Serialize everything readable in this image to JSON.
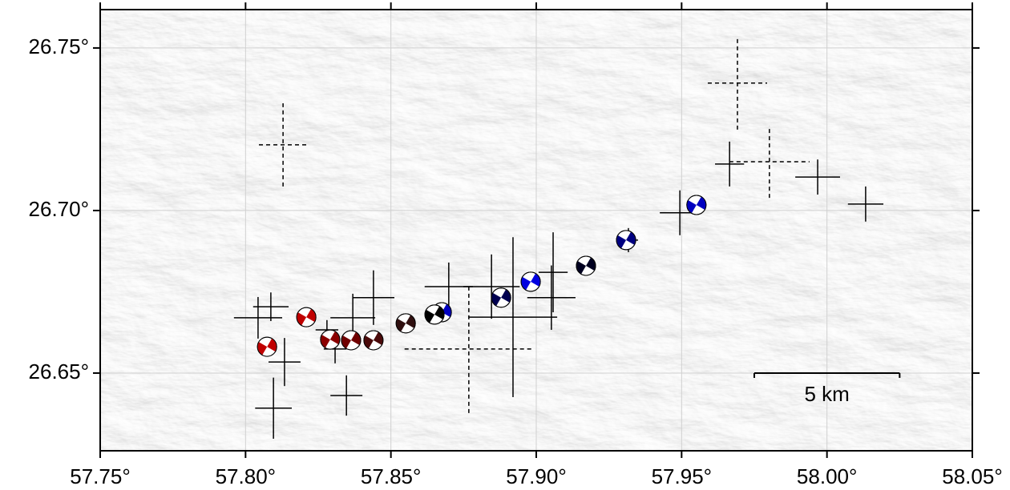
{
  "chart_data": {
    "type": "map",
    "xlim": [
      57.75,
      58.05
    ],
    "ylim": [
      26.6261,
      26.7618
    ],
    "xticks": [
      {
        "value": 57.75,
        "label": "57.75°"
      },
      {
        "value": 57.8,
        "label": "57.80°"
      },
      {
        "value": 57.85,
        "label": "57.85°"
      },
      {
        "value": 57.9,
        "label": "57.90°"
      },
      {
        "value": 57.95,
        "label": "57.95°"
      },
      {
        "value": 58.0,
        "label": "58.00°"
      },
      {
        "value": 58.05,
        "label": "58.05°"
      }
    ],
    "yticks": [
      {
        "value": 26.65,
        "label": "26.65°"
      },
      {
        "value": 26.7,
        "label": "26.70°"
      },
      {
        "value": 26.75,
        "label": "26.75°"
      }
    ],
    "grid": true,
    "crosses": [
      {
        "lon": 57.8043,
        "lat": 26.667,
        "dlon": 0.0083,
        "dlat": 0.0064,
        "style": "solid"
      },
      {
        "lon": 57.8087,
        "lat": 26.6704,
        "dlon": 0.0061,
        "dlat": 0.0044,
        "style": "solid"
      },
      {
        "lon": 57.8134,
        "lat": 26.6534,
        "dlon": 0.0055,
        "dlat": 0.0074,
        "style": "solid"
      },
      {
        "lon": 57.8096,
        "lat": 26.6392,
        "dlon": 0.0063,
        "dlat": 0.0094,
        "style": "solid"
      },
      {
        "lon": 57.828,
        "lat": 26.6633,
        "dlon": 0.0039,
        "dlat": 0.003,
        "style": "solid"
      },
      {
        "lon": 57.8308,
        "lat": 26.6574,
        "dlon": 0.0039,
        "dlat": 0.0044,
        "style": "solid"
      },
      {
        "lon": 57.844,
        "lat": 26.6732,
        "dlon": 0.0072,
        "dlat": 0.0084,
        "style": "solid"
      },
      {
        "lon": 57.8369,
        "lat": 26.667,
        "dlon": 0.0077,
        "dlat": 0.0074,
        "style": "solid"
      },
      {
        "lon": 57.8347,
        "lat": 26.6431,
        "dlon": 0.0055,
        "dlat": 0.0062,
        "style": "solid"
      },
      {
        "lon": 57.8129,
        "lat": 26.7202,
        "dlon": 0.0083,
        "dlat": 0.0128,
        "style": "dashed"
      },
      {
        "lon": 57.8768,
        "lat": 26.6574,
        "dlon": 0.0221,
        "dlat": 0.0197,
        "style": "dashed"
      },
      {
        "lon": 57.8699,
        "lat": 26.6766,
        "dlon": 0.0083,
        "dlat": 0.0074,
        "style": "solid"
      },
      {
        "lon": 57.8846,
        "lat": 26.6766,
        "dlon": 0.0097,
        "dlat": 0.0099,
        "style": "solid"
      },
      {
        "lon": 57.892,
        "lat": 26.6672,
        "dlon": 0.0152,
        "dlat": 0.0246,
        "style": "solid"
      },
      {
        "lon": 57.9052,
        "lat": 26.6732,
        "dlon": 0.0083,
        "dlat": 0.0099,
        "style": "solid"
      },
      {
        "lon": 57.9058,
        "lat": 26.681,
        "dlon": 0.005,
        "dlat": 0.0123,
        "style": "solid"
      },
      {
        "lon": 57.9494,
        "lat": 26.6993,
        "dlon": 0.0069,
        "dlat": 0.0069,
        "style": "solid"
      },
      {
        "lon": 57.9665,
        "lat": 26.7143,
        "dlon": 0.005,
        "dlat": 0.0069,
        "style": "solid"
      },
      {
        "lon": 57.9692,
        "lat": 26.7392,
        "dlon": 0.0102,
        "dlat": 0.0143,
        "style": "dashed"
      },
      {
        "lon": 57.9802,
        "lat": 26.715,
        "dlon": 0.0138,
        "dlat": 0.0111,
        "style": "dashed"
      },
      {
        "lon": 57.9968,
        "lat": 26.7103,
        "dlon": 0.0077,
        "dlat": 0.0054,
        "style": "solid"
      },
      {
        "lon": 58.0133,
        "lat": 26.702,
        "dlon": 0.0061,
        "dlat": 0.0054,
        "style": "solid"
      },
      {
        "lon": 57.9317,
        "lat": 26.6909,
        "dlon": 0.0033,
        "dlat": 0.0037,
        "style": "solid"
      }
    ],
    "events": [
      {
        "lon": 57.8074,
        "lat": 26.6581,
        "color": "#c00000"
      },
      {
        "lon": 57.8209,
        "lat": 26.6672,
        "color": "#c00000"
      },
      {
        "lon": 57.8291,
        "lat": 26.6603,
        "color": "#8b0000"
      },
      {
        "lon": 57.8363,
        "lat": 26.6601,
        "color": "#700000"
      },
      {
        "lon": 57.844,
        "lat": 26.6601,
        "color": "#4a0a0a"
      },
      {
        "lon": 57.8551,
        "lat": 26.6653,
        "color": "#301010"
      },
      {
        "lon": 57.8675,
        "lat": 26.6687,
        "color": "#0000c0"
      },
      {
        "lon": 57.865,
        "lat": 26.668,
        "color": "#000000"
      },
      {
        "lon": 57.8879,
        "lat": 26.6732,
        "color": "#000050"
      },
      {
        "lon": 57.8981,
        "lat": 26.6781,
        "color": "#0000e0"
      },
      {
        "lon": 57.9171,
        "lat": 26.683,
        "color": "#000020"
      },
      {
        "lon": 57.9309,
        "lat": 26.6909,
        "color": "#000080"
      },
      {
        "lon": 57.9551,
        "lat": 26.7017,
        "color": "#0000c0"
      }
    ],
    "scale_bar": {
      "label": "5 km",
      "lon": [
        57.975,
        58.025
      ],
      "lat": 26.65
    }
  }
}
